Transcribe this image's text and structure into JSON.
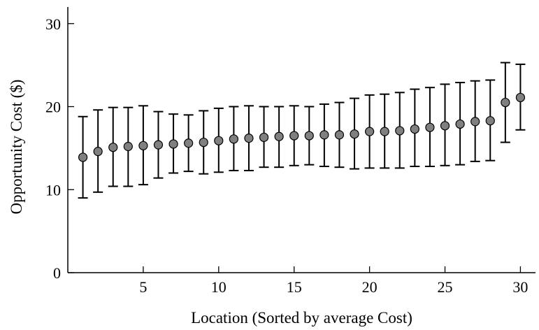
{
  "chart_data": {
    "type": "scatter",
    "title": "",
    "xlabel": "Location (Sorted by average Cost)",
    "ylabel": "Opportunity Cost ($)",
    "xlim": [
      0,
      31
    ],
    "ylim": [
      0,
      32
    ],
    "x_ticks": [
      5,
      10,
      15,
      20,
      25,
      30
    ],
    "y_ticks": [
      0,
      10,
      20,
      30
    ],
    "grid": false,
    "marker_color": "#808080",
    "x": [
      1,
      2,
      3,
      4,
      5,
      6,
      7,
      8,
      9,
      10,
      11,
      12,
      13,
      14,
      15,
      16,
      17,
      18,
      19,
      20,
      21,
      22,
      23,
      24,
      25,
      26,
      27,
      28,
      29,
      30
    ],
    "y": [
      13.9,
      14.6,
      15.1,
      15.2,
      15.3,
      15.4,
      15.5,
      15.6,
      15.7,
      15.9,
      16.1,
      16.2,
      16.3,
      16.4,
      16.5,
      16.5,
      16.6,
      16.6,
      16.7,
      17.0,
      17.0,
      17.1,
      17.3,
      17.5,
      17.7,
      17.9,
      18.2,
      18.3,
      20.5,
      21.1
    ],
    "y_lower": [
      9.0,
      9.7,
      10.4,
      10.4,
      10.6,
      11.4,
      12.0,
      12.2,
      11.9,
      12.1,
      12.3,
      12.3,
      12.7,
      12.7,
      12.9,
      13.0,
      12.8,
      12.7,
      12.5,
      12.6,
      12.6,
      12.6,
      12.8,
      12.8,
      12.9,
      13.0,
      13.4,
      13.5,
      15.7,
      17.2
    ],
    "y_upper": [
      18.8,
      19.6,
      19.9,
      19.9,
      20.1,
      19.4,
      19.1,
      19.0,
      19.5,
      19.8,
      20.0,
      20.1,
      20.0,
      20.0,
      20.1,
      20.0,
      20.3,
      20.5,
      21.0,
      21.4,
      21.5,
      21.7,
      22.1,
      22.3,
      22.7,
      22.9,
      23.1,
      23.2,
      25.3,
      25.1
    ]
  }
}
